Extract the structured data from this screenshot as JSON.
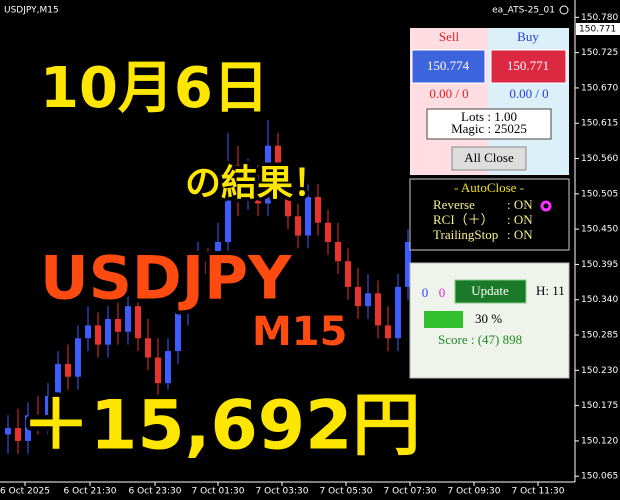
{
  "window": {
    "symbol": "USDJPY,M15",
    "ea_name": "ea_ATS-25_01",
    "price_label": "150.771"
  },
  "overlay": {
    "date": "10月6日",
    "result": "の結果！",
    "pair": "USDJPY",
    "timeframe": "M15",
    "profit": "＋15,692円"
  },
  "panel": {
    "sell_label": "Sell",
    "buy_label": "Buy",
    "sell_price": "150.774",
    "buy_price": "150.771",
    "sell_pl": "0.00 / 0",
    "buy_pl": "0.00 / 0",
    "lots": "Lots  : 1.00",
    "magic": "Magic : 25025",
    "all_close": "All Close",
    "autoclose_title": "- AutoClose -",
    "autoclose_rows": [
      [
        "Reverse",
        ": ON"
      ],
      [
        "RCI（＋）",
        ": ON"
      ],
      [
        "TrailingStop",
        ": ON"
      ]
    ],
    "count_a": "0",
    "count_b": "0",
    "update": "Update",
    "hours": "H: 11",
    "progress": "30 %",
    "score": "Score : (47) 898"
  },
  "chart_data": {
    "type": "candlestick",
    "up_color": "#3d5cff",
    "down_color": "#e8342c",
    "open": [
      150.13,
      150.14,
      150.12,
      150.16,
      150.15,
      150.19,
      150.24,
      150.22,
      150.28,
      150.3,
      150.27,
      150.31,
      150.29,
      150.33,
      150.28,
      150.25,
      150.21,
      150.26,
      150.32,
      150.35,
      150.4,
      150.38,
      150.43,
      150.55,
      150.5,
      150.53,
      150.49,
      150.58,
      150.52,
      150.47,
      150.44,
      150.5,
      150.46,
      150.43,
      150.4,
      150.36,
      150.33,
      150.35,
      150.3,
      150.28,
      150.36
    ],
    "high": [
      150.16,
      150.17,
      150.18,
      150.19,
      150.21,
      150.26,
      150.27,
      150.3,
      150.33,
      150.32,
      150.33,
      150.34,
      150.35,
      150.36,
      150.31,
      150.28,
      150.28,
      150.34,
      150.37,
      150.43,
      150.42,
      150.46,
      150.6,
      150.58,
      150.56,
      150.55,
      150.62,
      150.6,
      150.54,
      150.49,
      150.52,
      150.52,
      150.48,
      150.46,
      150.42,
      150.39,
      150.38,
      150.37,
      150.33,
      150.38,
      150.45
    ],
    "low": [
      150.1,
      150.1,
      150.1,
      150.13,
      150.13,
      150.17,
      150.2,
      150.2,
      150.26,
      150.25,
      150.25,
      150.27,
      150.27,
      150.26,
      150.23,
      150.19,
      150.2,
      150.24,
      150.3,
      150.33,
      150.36,
      150.36,
      150.41,
      150.47,
      150.48,
      150.47,
      150.47,
      150.5,
      150.45,
      150.42,
      150.42,
      150.44,
      150.41,
      150.38,
      150.34,
      150.31,
      150.31,
      150.28,
      150.26,
      150.26,
      150.34
    ],
    "close": [
      150.14,
      150.12,
      150.16,
      150.15,
      150.19,
      150.24,
      150.22,
      150.28,
      150.3,
      150.27,
      150.31,
      150.29,
      150.33,
      150.28,
      150.25,
      150.21,
      150.26,
      150.32,
      150.35,
      150.4,
      150.38,
      150.43,
      150.55,
      150.5,
      150.53,
      150.49,
      150.58,
      150.52,
      150.47,
      150.44,
      150.5,
      150.46,
      150.43,
      150.4,
      150.36,
      150.33,
      150.35,
      150.3,
      150.28,
      150.36,
      150.43
    ],
    "xlim": [
      -0.8,
      56.7
    ],
    "xticks": [
      {
        "value": 1.7,
        "label": "6 Oct 2025"
      },
      {
        "value": 8.2,
        "label": "6 Oct 21:30"
      },
      {
        "value": 14.7,
        "label": "6 Oct 23:30"
      },
      {
        "value": 21,
        "label": "7 Oct 01:30"
      },
      {
        "value": 27.4,
        "label": "7 Oct 03:30"
      },
      {
        "value": 33.8,
        "label": "7 Oct 05:30"
      },
      {
        "value": 40.2,
        "label": "7 Oct 07:30"
      },
      {
        "value": 46.6,
        "label": "7 Oct 09:30"
      },
      {
        "value": 53,
        "label": "7 Oct 11:30"
      }
    ],
    "ylim": [
      150.056,
      150.807
    ],
    "yticks": [
      150.065,
      {
        "value": 150.12,
        "label": "150.120"
      },
      150.175,
      {
        "value": 150.23,
        "label": "150.230"
      },
      150.285,
      {
        "value": 150.34,
        "label": "150.340"
      },
      150.395,
      {
        "value": 150.45,
        "label": "150.450"
      },
      150.505,
      {
        "value": 150.56,
        "label": "150.560"
      },
      150.615,
      {
        "value": 150.67,
        "label": "150.670"
      },
      150.725,
      {
        "value": 150.78,
        "label": "150.780"
      }
    ]
  }
}
